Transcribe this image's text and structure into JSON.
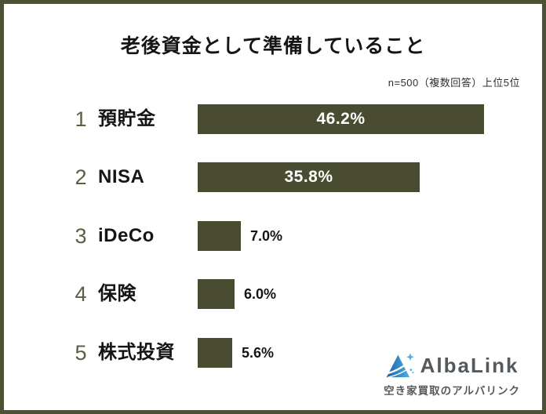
{
  "header": {
    "title": "老後資金として準備していること",
    "note": "n=500（複数回答）上位5位"
  },
  "chart_data": {
    "type": "bar",
    "orientation": "horizontal",
    "title": "老後資金として準備していること",
    "subtitle": "n=500（複数回答）上位5位",
    "unit": "%",
    "categories": [
      "預貯金",
      "NISA",
      "iDeCo",
      "保険",
      "株式投資"
    ],
    "values": [
      46.2,
      35.8,
      7.0,
      6.0,
      5.6
    ],
    "xlim": [
      0,
      50
    ],
    "grid": false,
    "legend": false,
    "rows": [
      {
        "rank": "1",
        "label": "預貯金",
        "value": 46.2,
        "value_label": "46.2%"
      },
      {
        "rank": "2",
        "label": "NISA",
        "value": 35.8,
        "value_label": "35.8%"
      },
      {
        "rank": "3",
        "label": "iDeCo",
        "value": 7.0,
        "value_label": "7.0%"
      },
      {
        "rank": "4",
        "label": "保険",
        "value": 6.0,
        "value_label": "6.0%"
      },
      {
        "rank": "5",
        "label": "株式投資",
        "value": 5.6,
        "value_label": "5.6%"
      }
    ],
    "colors": {
      "bar": "#494c31",
      "rank_number": "#5b5e41",
      "frame_border": "#4e5136",
      "value_inside": "#ffffff",
      "value_outside": "#151515"
    }
  },
  "footer": {
    "logo_name": "AlbaLink",
    "logo_subtitle": "空き家買取のアルバリンク",
    "logo_colors": {
      "triangle_dark": "#1a5fa8",
      "triangle_light": "#4fb0e0",
      "text": "#54595d"
    }
  }
}
